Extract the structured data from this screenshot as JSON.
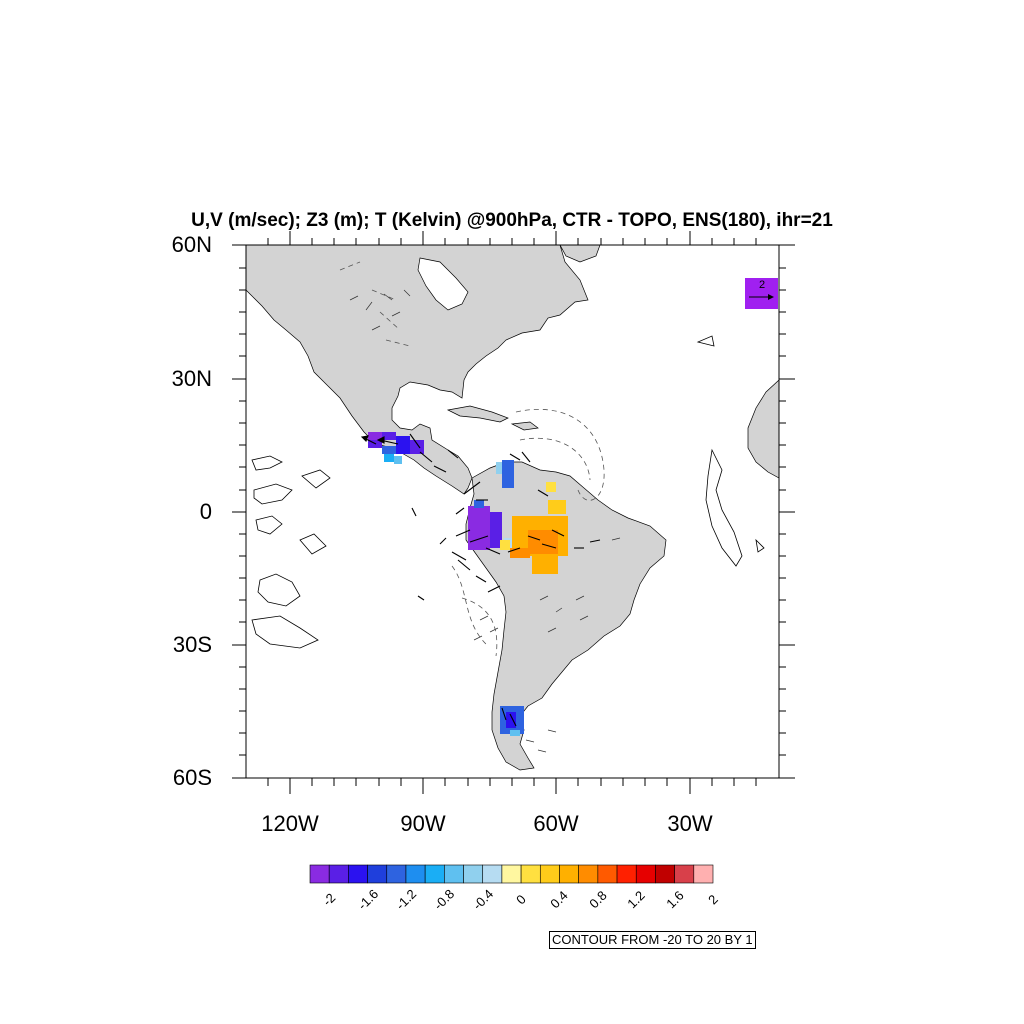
{
  "title": "U,V (m/sec); Z3 (m); T (Kelvin) @900hPa, CTR - TOPO, ENS(180), ihr=21",
  "axes": {
    "lat_labels": [
      "60N",
      "30N",
      "0",
      "30S",
      "60S"
    ],
    "lon_labels": [
      "120W",
      "90W",
      "60W",
      "30W"
    ]
  },
  "colorbar": {
    "labels": [
      "-2",
      "-1.6",
      "-1.2",
      "-0.8",
      "-0.4",
      "0",
      "0.4",
      "0.8",
      "1.2",
      "1.6",
      "2"
    ],
    "colors": [
      "#8a2be2",
      "#5a1fe6",
      "#2b12f0",
      "#1f3fdc",
      "#2e63e0",
      "#1e8ef0",
      "#1aaef5",
      "#5fc0f0",
      "#90d0ee",
      "#b6dcf2",
      "#fff7a0",
      "#ffe040",
      "#ffcc1a",
      "#ffb000",
      "#ff8c00",
      "#ff5a00",
      "#ff2000",
      "#e60000",
      "#c00000",
      "#d8404a",
      "#ffb0b0"
    ]
  },
  "contour_info": "CONTOUR FROM -20 TO 20 BY 1",
  "reference_vector": {
    "label": "2",
    "color": "#a020f0"
  },
  "map_colors": {
    "land": "#d3d3d3",
    "ocean": "#ffffff",
    "coast": "#000000"
  }
}
